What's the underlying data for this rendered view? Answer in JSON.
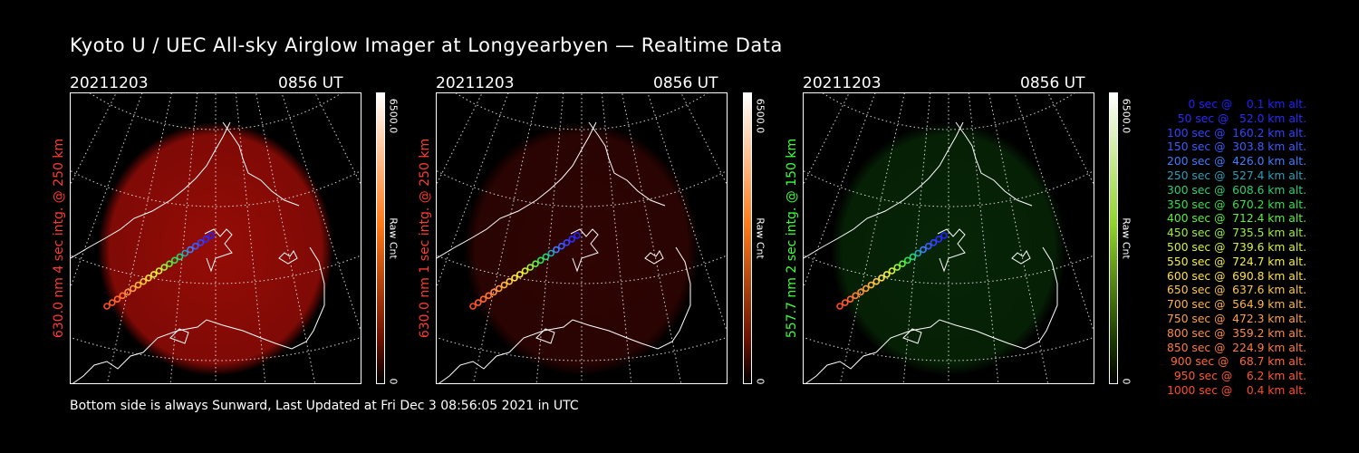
{
  "title": "Kyoto U / UEC All-sky Airglow Imager at Longyearbyen — Realtime Data",
  "footer": "Bottom side is always Sunward, Last Updated at Fri Dec  3 08:56:05 2021 in UTC",
  "colorbar": {
    "max_label": "6500.0",
    "min_label": "0",
    "unit_label": "Raw Cnt"
  },
  "panels": [
    {
      "date": "20211203",
      "time": "0856 UT",
      "ylabel": "630.0 nm 4 sec intg. @ 250 km",
      "label_color": "#ff3b2f",
      "glow_color": "#b00e08",
      "glow_opacity": 0.85,
      "bar_top": "#ffffff",
      "bar_mid": "#ff7a1a",
      "bar_low": "#6a1000"
    },
    {
      "date": "20211203",
      "time": "0856 UT",
      "ylabel": "630.0 nm 1 sec intg. @ 250 km",
      "label_color": "#ff3b2f",
      "glow_color": "#6a0a06",
      "glow_opacity": 0.45,
      "bar_top": "#ffffff",
      "bar_mid": "#ff7a1a",
      "bar_low": "#6a1000"
    },
    {
      "date": "20211203",
      "time": "0856 UT",
      "ylabel": "557.7 nm 2 sec intg. @ 150 km",
      "label_color": "#3cff3c",
      "glow_color": "#0e4a0e",
      "glow_opacity": 0.5,
      "bar_top": "#ffffff",
      "bar_mid": "#8fd62a",
      "bar_low": "#1a3a00"
    }
  ],
  "legend": [
    {
      "text": "0 sec @    0.1 km alt.",
      "color": "#2020ff"
    },
    {
      "text": "50 sec @   52.0 km alt.",
      "color": "#2a2aff"
    },
    {
      "text": "100 sec @  160.2 km alt.",
      "color": "#3344ff"
    },
    {
      "text": "150 sec @  303.8 km alt.",
      "color": "#3a5cff"
    },
    {
      "text": "200 sec @  426.0 km alt.",
      "color": "#3f7dff"
    },
    {
      "text": "250 sec @  527.4 km alt.",
      "color": "#2aa0b8"
    },
    {
      "text": "300 sec @  608.6 km alt.",
      "color": "#2ad07a"
    },
    {
      "text": "350 sec @  670.2 km alt.",
      "color": "#33e04a"
    },
    {
      "text": "400 sec @  712.4 km alt.",
      "color": "#5ef03a"
    },
    {
      "text": "450 sec @  735.5 km alt.",
      "color": "#9cf03a"
    },
    {
      "text": "500 sec @  739.6 km alt.",
      "color": "#d8f03a"
    },
    {
      "text": "550 sec @  724.7 km alt.",
      "color": "#f4f040"
    },
    {
      "text": "600 sec @  690.8 km alt.",
      "color": "#ffe040"
    },
    {
      "text": "650 sec @  637.6 km alt.",
      "color": "#ffc840"
    },
    {
      "text": "700 sec @  564.9 km alt.",
      "color": "#ffb440"
    },
    {
      "text": "750 sec @  472.3 km alt.",
      "color": "#ffa040"
    },
    {
      "text": "800 sec @  359.2 km alt.",
      "color": "#ff8c40"
    },
    {
      "text": "850 sec @  224.9 km alt.",
      "color": "#ff7a3a"
    },
    {
      "text": "900 sec @   68.7 km alt.",
      "color": "#ff6a34"
    },
    {
      "text": "950 sec @    6.2 km alt.",
      "color": "#ff5a2e"
    },
    {
      "text": "1000 sec @    0.4 km alt.",
      "color": "#ff4a28"
    }
  ]
}
